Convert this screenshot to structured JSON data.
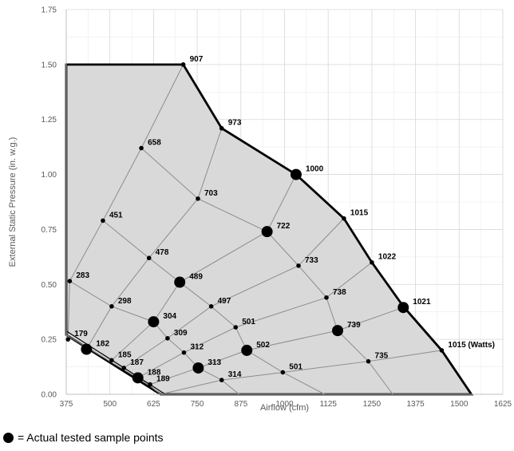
{
  "chart_data": {
    "type": "scatter",
    "xlabel": "Airflow (cfm)",
    "ylabel": "External Static Pressure (in. w.g.)",
    "xlim": [
      375,
      1625
    ],
    "ylim": [
      0,
      1.75
    ],
    "x_ticks": [
      "375",
      "500",
      "625",
      "750",
      "875",
      "1000",
      "1125",
      "1250",
      "1375",
      "1500",
      "1625"
    ],
    "y_ticks": [
      "0.00",
      "0.25",
      "0.50",
      "0.75",
      "1.00",
      "1.25",
      "1.50",
      "1.75"
    ],
    "grid": true,
    "colors": {
      "region_fill": "#d9d9d9",
      "grid": "#d9d9d9",
      "boundary": "#000000",
      "curves": "#8c8c8c"
    },
    "boundary": [
      {
        "x": 375,
        "y": 1.5
      },
      {
        "x": 710,
        "y": 1.5
      },
      {
        "x": 820,
        "y": 1.21
      },
      {
        "x": 1033,
        "y": 1.0
      },
      {
        "x": 1170,
        "y": 0.8
      },
      {
        "x": 1250,
        "y": 0.6
      },
      {
        "x": 1340,
        "y": 0.4
      },
      {
        "x": 1450,
        "y": 0.2
      },
      {
        "x": 1535,
        "y": 0.0
      },
      {
        "x": 645,
        "y": 0.0
      },
      {
        "x": 375,
        "y": 0.27
      }
    ],
    "tested_points": [
      {
        "x": 1033,
        "y": 1.0
      },
      {
        "x": 950,
        "y": 0.74
      },
      {
        "x": 700,
        "y": 0.51
      },
      {
        "x": 625,
        "y": 0.33
      },
      {
        "x": 1152,
        "y": 0.29
      },
      {
        "x": 1340,
        "y": 0.395
      },
      {
        "x": 892,
        "y": 0.2
      },
      {
        "x": 433,
        "y": 0.205
      },
      {
        "x": 753,
        "y": 0.12
      },
      {
        "x": 580,
        "y": 0.075
      }
    ],
    "points": [
      {
        "x": 710,
        "y": 1.5,
        "label": "907"
      },
      {
        "x": 820,
        "y": 1.21,
        "label": "973"
      },
      {
        "x": 1033,
        "y": 1.0,
        "label": "1000"
      },
      {
        "x": 1170,
        "y": 0.8,
        "label": "1015"
      },
      {
        "x": 1250,
        "y": 0.6,
        "label": "1022"
      },
      {
        "x": 1340,
        "y": 0.395,
        "label": "1021"
      },
      {
        "x": 1450,
        "y": 0.2,
        "label": "1015 (Watts)"
      },
      {
        "x": 590,
        "y": 1.12,
        "label": "658"
      },
      {
        "x": 752,
        "y": 0.89,
        "label": "703"
      },
      {
        "x": 950,
        "y": 0.74,
        "label": "722"
      },
      {
        "x": 1040,
        "y": 0.585,
        "label": "733"
      },
      {
        "x": 1120,
        "y": 0.44,
        "label": "738"
      },
      {
        "x": 1152,
        "y": 0.29,
        "label": "739"
      },
      {
        "x": 1240,
        "y": 0.15,
        "label": "735"
      },
      {
        "x": 480,
        "y": 0.79,
        "label": "451"
      },
      {
        "x": 612,
        "y": 0.62,
        "label": "478"
      },
      {
        "x": 700,
        "y": 0.51,
        "label": "489"
      },
      {
        "x": 790,
        "y": 0.4,
        "label": "497"
      },
      {
        "x": 860,
        "y": 0.305,
        "label": "501"
      },
      {
        "x": 892,
        "y": 0.2,
        "label": "502"
      },
      {
        "x": 995,
        "y": 0.1,
        "label": "501"
      },
      {
        "x": 385,
        "y": 0.515,
        "label": "283"
      },
      {
        "x": 505,
        "y": 0.4,
        "label": "298"
      },
      {
        "x": 625,
        "y": 0.33,
        "label": "304"
      },
      {
        "x": 665,
        "y": 0.255,
        "label": "309"
      },
      {
        "x": 712,
        "y": 0.19,
        "label": "312"
      },
      {
        "x": 753,
        "y": 0.12,
        "label": "313"
      },
      {
        "x": 820,
        "y": 0.065,
        "label": "314"
      },
      {
        "x": 380,
        "y": 0.25,
        "label": "179"
      },
      {
        "x": 433,
        "y": 0.205,
        "label": "182"
      },
      {
        "x": 505,
        "y": 0.155,
        "label": "185"
      },
      {
        "x": 540,
        "y": 0.12,
        "label": "187"
      },
      {
        "x": 580,
        "y": 0.075,
        "label": "188"
      },
      {
        "x": 615,
        "y": 0.045,
        "label": "189"
      }
    ],
    "curves": [
      {
        "points": [
          [
            375,
            0.27
          ],
          [
            610,
            0.045
          ],
          [
            645,
            0.0
          ]
        ]
      },
      {
        "points": [
          [
            385,
            0.515
          ],
          [
            505,
            0.4
          ],
          [
            625,
            0.33
          ],
          [
            665,
            0.255
          ],
          [
            712,
            0.19
          ],
          [
            753,
            0.12
          ],
          [
            820,
            0.065
          ],
          [
            870,
            0.0
          ]
        ]
      },
      {
        "points": [
          [
            480,
            0.79
          ],
          [
            612,
            0.62
          ],
          [
            700,
            0.51
          ],
          [
            790,
            0.4
          ],
          [
            860,
            0.305
          ],
          [
            892,
            0.2
          ],
          [
            995,
            0.1
          ],
          [
            1115,
            0.0
          ]
        ]
      },
      {
        "points": [
          [
            590,
            1.12
          ],
          [
            752,
            0.89
          ],
          [
            950,
            0.74
          ],
          [
            1040,
            0.585
          ],
          [
            1120,
            0.44
          ],
          [
            1152,
            0.29
          ],
          [
            1240,
            0.15
          ],
          [
            1310,
            0.0
          ]
        ]
      },
      {
        "points": [
          [
            380,
            0.25
          ],
          [
            385,
            0.515
          ],
          [
            480,
            0.79
          ],
          [
            590,
            1.12
          ],
          [
            710,
            1.5
          ]
        ]
      },
      {
        "points": [
          [
            433,
            0.205
          ],
          [
            505,
            0.4
          ],
          [
            612,
            0.62
          ],
          [
            752,
            0.89
          ],
          [
            820,
            1.21
          ]
        ]
      },
      {
        "points": [
          [
            505,
            0.155
          ],
          [
            625,
            0.33
          ],
          [
            700,
            0.51
          ],
          [
            950,
            0.74
          ],
          [
            1033,
            1.0
          ]
        ]
      },
      {
        "points": [
          [
            540,
            0.12
          ],
          [
            665,
            0.255
          ],
          [
            790,
            0.4
          ],
          [
            1040,
            0.585
          ],
          [
            1170,
            0.8
          ]
        ]
      },
      {
        "points": [
          [
            580,
            0.075
          ],
          [
            712,
            0.19
          ],
          [
            860,
            0.305
          ],
          [
            1120,
            0.44
          ],
          [
            1250,
            0.6
          ]
        ]
      },
      {
        "points": [
          [
            615,
            0.045
          ],
          [
            753,
            0.12
          ],
          [
            892,
            0.2
          ],
          [
            1152,
            0.29
          ],
          [
            1340,
            0.395
          ]
        ]
      },
      {
        "points": [
          [
            645,
            0.0
          ],
          [
            820,
            0.065
          ],
          [
            995,
            0.1
          ],
          [
            1240,
            0.15
          ],
          [
            1450,
            0.2
          ]
        ]
      }
    ]
  },
  "legend": {
    "text": "= Actual tested sample points"
  }
}
